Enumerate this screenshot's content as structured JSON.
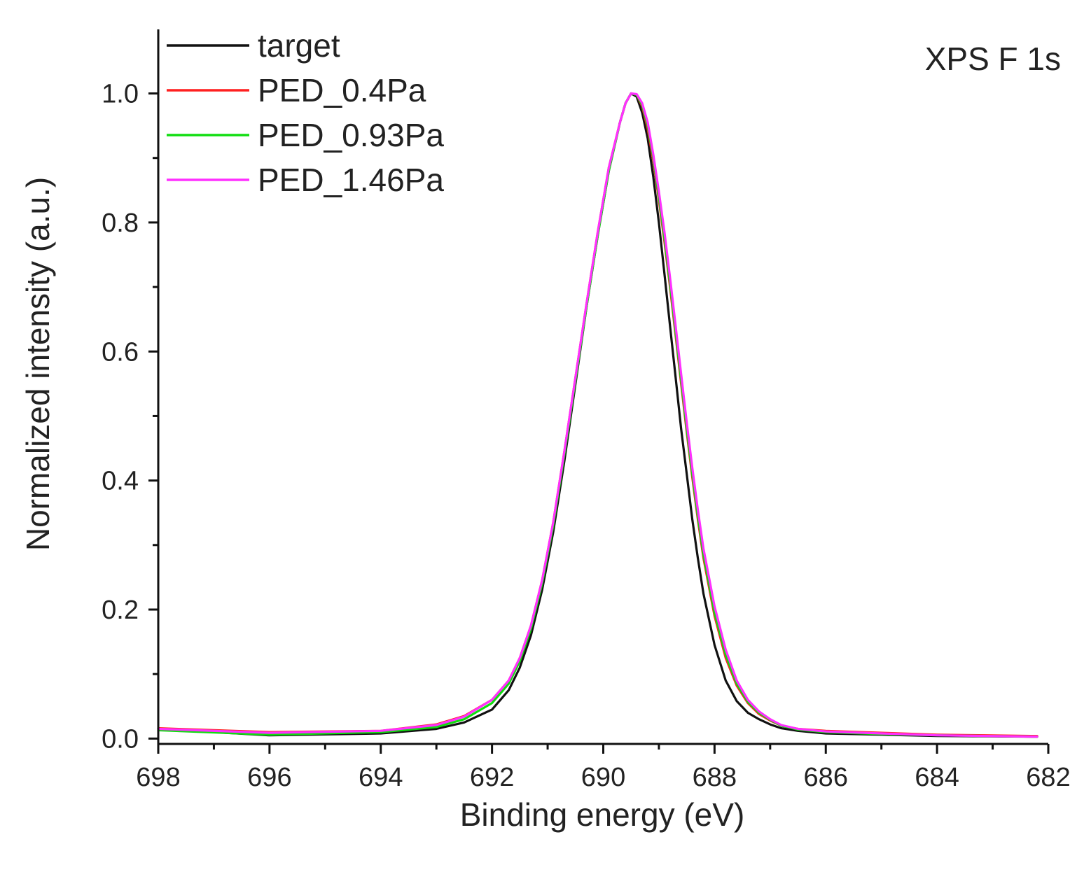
{
  "chart_data": {
    "type": "line",
    "title": "",
    "annotation": "XPS F 1s",
    "xlabel": "Binding energy (eV)",
    "ylabel": "Normalized intensity (a.u.)",
    "xlim": [
      698,
      682
    ],
    "ylim": [
      -0.0083,
      1.0993
    ],
    "x_ticks": [
      "698",
      "696",
      "694",
      "692",
      "690",
      "688",
      "686",
      "684",
      "682"
    ],
    "x_tick_values": [
      698,
      696,
      694,
      692,
      690,
      688,
      686,
      684,
      682
    ],
    "y_ticks": [
      "0.0",
      "0.2",
      "0.4",
      "0.6",
      "0.8",
      "1.0"
    ],
    "y_tick_values": [
      0.0,
      0.2,
      0.4,
      0.6,
      0.8,
      1.0
    ],
    "grid": false,
    "legend_position": "top-left",
    "series": [
      {
        "name": "target",
        "color": "#111111",
        "x": [
          698,
          696,
          694,
          693,
          692.5,
          692,
          691.7,
          691.5,
          691.3,
          691.1,
          690.9,
          690.7,
          690.5,
          690.3,
          690.1,
          689.9,
          689.7,
          689.6,
          689.5,
          689.4,
          689.3,
          689.2,
          689.1,
          689.0,
          688.9,
          688.8,
          688.7,
          688.6,
          688.5,
          688.4,
          688.3,
          688.2,
          688.0,
          687.8,
          687.6,
          687.4,
          687.2,
          687.0,
          686.8,
          686.5,
          686.0,
          685.0,
          684.0,
          682.2
        ],
        "y": [
          0.015,
          0.005,
          0.008,
          0.015,
          0.025,
          0.045,
          0.075,
          0.11,
          0.16,
          0.23,
          0.32,
          0.43,
          0.55,
          0.67,
          0.78,
          0.88,
          0.955,
          0.985,
          1.0,
          0.995,
          0.97,
          0.93,
          0.87,
          0.8,
          0.72,
          0.64,
          0.56,
          0.48,
          0.41,
          0.34,
          0.28,
          0.225,
          0.145,
          0.09,
          0.058,
          0.04,
          0.03,
          0.022,
          0.016,
          0.012,
          0.008,
          0.006,
          0.004,
          0.003
        ]
      },
      {
        "name": "PED_0.4Pa",
        "color": "#ff2020",
        "x": [
          698,
          696,
          694,
          693,
          692.5,
          692,
          691.7,
          691.5,
          691.3,
          691.1,
          690.9,
          690.7,
          690.5,
          690.3,
          690.1,
          689.9,
          689.7,
          689.6,
          689.5,
          689.4,
          689.3,
          689.2,
          689.1,
          689.0,
          688.9,
          688.8,
          688.7,
          688.6,
          688.5,
          688.4,
          688.3,
          688.2,
          688.0,
          687.8,
          687.6,
          687.4,
          687.2,
          687.0,
          686.8,
          686.5,
          686.0,
          685.0,
          684.0,
          682.2
        ],
        "y": [
          0.016,
          0.01,
          0.012,
          0.022,
          0.035,
          0.06,
          0.09,
          0.125,
          0.175,
          0.245,
          0.335,
          0.445,
          0.56,
          0.675,
          0.785,
          0.885,
          0.955,
          0.985,
          1.0,
          0.998,
          0.98,
          0.945,
          0.895,
          0.835,
          0.77,
          0.7,
          0.625,
          0.55,
          0.475,
          0.405,
          0.34,
          0.28,
          0.19,
          0.125,
          0.082,
          0.055,
          0.038,
          0.028,
          0.02,
          0.015,
          0.012,
          0.009,
          0.006,
          0.004
        ]
      },
      {
        "name": "PED_0.93Pa",
        "color": "#10dd10",
        "x": [
          698,
          696,
          694,
          693,
          692.5,
          692,
          691.7,
          691.5,
          691.3,
          691.1,
          690.9,
          690.7,
          690.5,
          690.3,
          690.1,
          689.9,
          689.7,
          689.6,
          689.5,
          689.4,
          689.3,
          689.2,
          689.1,
          689.0,
          688.9,
          688.8,
          688.7,
          688.6,
          688.5,
          688.4,
          688.3,
          688.2,
          688.0,
          687.8,
          687.6,
          687.4,
          687.2,
          687.0,
          686.8,
          686.5,
          686.0,
          685.0,
          684.0,
          682.2
        ],
        "y": [
          0.013,
          0.006,
          0.01,
          0.018,
          0.03,
          0.055,
          0.085,
          0.12,
          0.17,
          0.24,
          0.33,
          0.44,
          0.555,
          0.67,
          0.78,
          0.88,
          0.955,
          0.985,
          1.0,
          0.998,
          0.982,
          0.95,
          0.9,
          0.84,
          0.775,
          0.705,
          0.63,
          0.555,
          0.48,
          0.41,
          0.345,
          0.285,
          0.195,
          0.13,
          0.085,
          0.057,
          0.04,
          0.029,
          0.02,
          0.014,
          0.01,
          0.007,
          0.005,
          0.003
        ]
      },
      {
        "name": "PED_1.46Pa",
        "color": "#ff30ff",
        "x": [
          698,
          696,
          694,
          693,
          692.5,
          692,
          691.7,
          691.5,
          691.3,
          691.1,
          690.9,
          690.7,
          690.5,
          690.3,
          690.1,
          689.9,
          689.7,
          689.6,
          689.5,
          689.4,
          689.3,
          689.2,
          689.1,
          689.0,
          688.9,
          688.8,
          688.7,
          688.6,
          688.5,
          688.4,
          688.3,
          688.2,
          688.0,
          687.8,
          687.6,
          687.4,
          687.2,
          687.0,
          686.8,
          686.5,
          686.0,
          685.0,
          684.0,
          682.2
        ],
        "y": [
          0.015,
          0.009,
          0.012,
          0.021,
          0.034,
          0.06,
          0.09,
          0.125,
          0.175,
          0.245,
          0.335,
          0.445,
          0.56,
          0.675,
          0.785,
          0.885,
          0.955,
          0.985,
          1.0,
          0.999,
          0.985,
          0.955,
          0.905,
          0.848,
          0.785,
          0.715,
          0.64,
          0.565,
          0.49,
          0.42,
          0.355,
          0.295,
          0.205,
          0.138,
          0.09,
          0.06,
          0.042,
          0.03,
          0.021,
          0.015,
          0.011,
          0.008,
          0.005,
          0.003
        ]
      }
    ]
  }
}
